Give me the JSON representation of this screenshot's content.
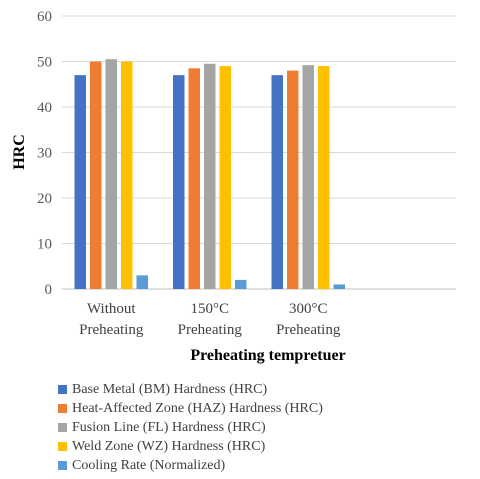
{
  "chart_data": {
    "type": "bar",
    "categories": [
      [
        "Without",
        "Preheating"
      ],
      [
        "150°C",
        "Preheating"
      ],
      [
        "300°C",
        "Preheating"
      ],
      [
        "",
        ""
      ]
    ],
    "series": [
      {
        "name": "Base Metal (BM) Hardness (HRC)",
        "color": "#4472C4",
        "values": [
          47,
          47,
          47,
          null
        ]
      },
      {
        "name": "Heat-Affected Zone (HAZ) Hardness (HRC)",
        "color": "#ED7D31",
        "values": [
          50,
          48.5,
          48,
          null
        ]
      },
      {
        "name": "Fusion Line (FL) Hardness (HRC)",
        "color": "#A5A5A5",
        "values": [
          50.5,
          49.5,
          49.2,
          null
        ]
      },
      {
        "name": "Weld Zone (WZ) Hardness (HRC)",
        "color": "#FFC000",
        "values": [
          50,
          49,
          49,
          null
        ]
      },
      {
        "name": "Cooling Rate (Normalized)",
        "color": "#5B9BD5",
        "values": [
          3,
          2,
          1,
          null
        ]
      }
    ],
    "title": "",
    "xlabel": "Preheating tempretuer",
    "ylabel": "HRC",
    "ylim": [
      0,
      60
    ],
    "yticks": [
      0,
      10,
      20,
      30,
      40,
      50,
      60
    ],
    "grid": true,
    "legend": "bottom"
  }
}
